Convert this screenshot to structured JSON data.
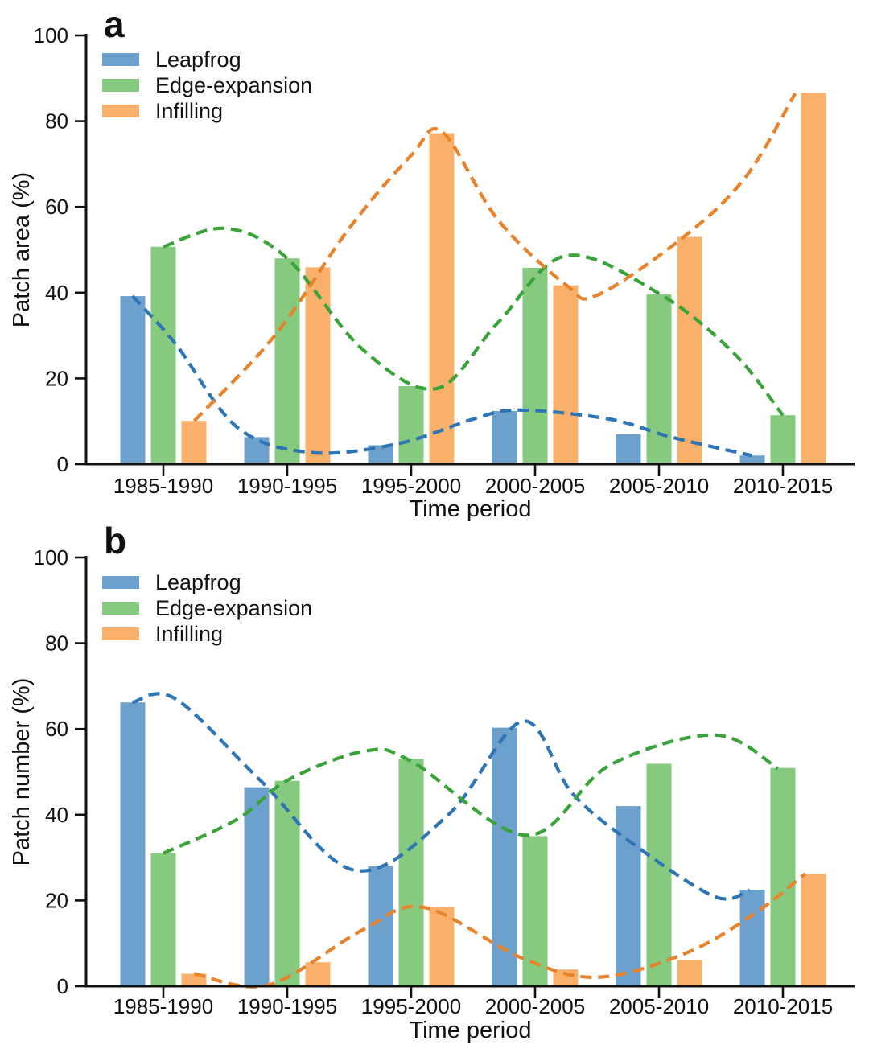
{
  "figure_title": "",
  "legend": {
    "entries": [
      "Leapfrog",
      "Edge-expansion",
      "Infilling"
    ]
  },
  "colors": {
    "bar_blue": "#6CA0CD",
    "bar_green": "#85CA7E",
    "bar_orange": "#F9B06A",
    "line_blue": "#2E75B5",
    "line_green": "#39A339",
    "line_orange": "#E8822B",
    "axis": "#111111"
  },
  "chart_data": [
    {
      "type": "bar",
      "panel_label": "a",
      "title": "",
      "xlabel": "Time period",
      "ylabel": "Patch area (%)",
      "ylim": [
        0,
        100
      ],
      "yticks": [
        0,
        20,
        40,
        60,
        80,
        100
      ],
      "grid": false,
      "legend_position": "upper-left-inside",
      "categories": [
        "1985-1990",
        "1990-1995",
        "1995-2000",
        "2000-2005",
        "2005-2010",
        "2010-2015"
      ],
      "series": [
        {
          "name": "Leapfrog",
          "bar_color": "#6CA0CD",
          "trend_color": "#2E75B5",
          "values": [
            39.2,
            6.3,
            4.4,
            12.4,
            7.0,
            2.0
          ],
          "trend_points": [
            [
              -0.25,
              39.2
            ],
            [
              0.1,
              28
            ],
            [
              0.6,
              8.5
            ],
            [
              1.2,
              2.7
            ],
            [
              1.9,
              4.8
            ],
            [
              2.5,
              10.5
            ],
            [
              2.87,
              12.6
            ],
            [
              3.6,
              10.5
            ],
            [
              4.1,
              6.3
            ],
            [
              4.75,
              2.0
            ]
          ]
        },
        {
          "name": "Edge-expansion",
          "bar_color": "#85CA7E",
          "trend_color": "#39A339",
          "values": [
            50.7,
            48.0,
            18.2,
            45.8,
            39.6,
            11.4
          ],
          "trend_points": [
            [
              0,
              50.7
            ],
            [
              0.5,
              55
            ],
            [
              1.0,
              48
            ],
            [
              1.6,
              27
            ],
            [
              2.2,
              17.6
            ],
            [
              2.7,
              33
            ],
            [
              3.25,
              48.6
            ],
            [
              4.0,
              39.8
            ],
            [
              4.6,
              26
            ],
            [
              5.0,
              11.4
            ]
          ]
        },
        {
          "name": "Infilling",
          "bar_color": "#F9B06A",
          "trend_color": "#E8822B",
          "values": [
            10.1,
            45.9,
            77.2,
            41.7,
            53.0,
            86.6
          ],
          "trend_points": [
            [
              0.25,
              10.1
            ],
            [
              0.9,
              30
            ],
            [
              1.5,
              55
            ],
            [
              2.0,
              72
            ],
            [
              2.25,
              77.5
            ],
            [
              2.7,
              57
            ],
            [
              3.25,
              41.8
            ],
            [
              3.5,
              39.4
            ],
            [
              4.2,
              53
            ],
            [
              4.7,
              67
            ],
            [
              5.1,
              86.5
            ]
          ]
        }
      ]
    },
    {
      "type": "bar",
      "panel_label": "b",
      "title": "",
      "xlabel": "Time period",
      "ylabel": "Patch number (%)",
      "ylim": [
        0,
        100
      ],
      "yticks": [
        0,
        20,
        40,
        60,
        80,
        100
      ],
      "grid": false,
      "legend_position": "upper-left-inside",
      "categories": [
        "1985-1990",
        "1990-1995",
        "1995-2000",
        "2000-2005",
        "2005-2010",
        "2010-2015"
      ],
      "series": [
        {
          "name": "Leapfrog",
          "bar_color": "#6CA0CD",
          "trend_color": "#2E75B5",
          "values": [
            66.2,
            46.4,
            28.0,
            60.3,
            42.0,
            22.5
          ],
          "trend_points": [
            [
              -0.25,
              66.2
            ],
            [
              0.1,
              67
            ],
            [
              0.8,
              47.5
            ],
            [
              1.55,
              27
            ],
            [
              2.3,
              40
            ],
            [
              2.9,
              61.8
            ],
            [
              3.3,
              45
            ],
            [
              3.8,
              33
            ],
            [
              4.45,
              20.9
            ],
            [
              4.73,
              22.4
            ]
          ]
        },
        {
          "name": "Edge-expansion",
          "bar_color": "#85CA7E",
          "trend_color": "#39A339",
          "values": [
            31.0,
            47.9,
            53.1,
            35.0,
            51.9,
            50.9
          ],
          "trend_points": [
            [
              0,
              31
            ],
            [
              0.6,
              39
            ],
            [
              1.0,
              48
            ],
            [
              1.62,
              54.8
            ],
            [
              2.0,
              52.5
            ],
            [
              2.93,
              35.2
            ],
            [
              3.6,
              51.5
            ],
            [
              4.45,
              58.6
            ],
            [
              4.96,
              50.8
            ]
          ]
        },
        {
          "name": "Infilling",
          "bar_color": "#F9B06A",
          "trend_color": "#E8822B",
          "values": [
            2.9,
            5.6,
            18.4,
            3.9,
            6.1,
            26.2
          ],
          "trend_points": [
            [
              0.25,
              2.9
            ],
            [
              0.85,
              0.3
            ],
            [
              1.6,
              13
            ],
            [
              2.1,
              18.4
            ],
            [
              2.9,
              6.5
            ],
            [
              3.5,
              2.1
            ],
            [
              4.2,
              7.5
            ],
            [
              4.75,
              16.5
            ],
            [
              5.18,
              26.2
            ]
          ]
        }
      ]
    }
  ]
}
